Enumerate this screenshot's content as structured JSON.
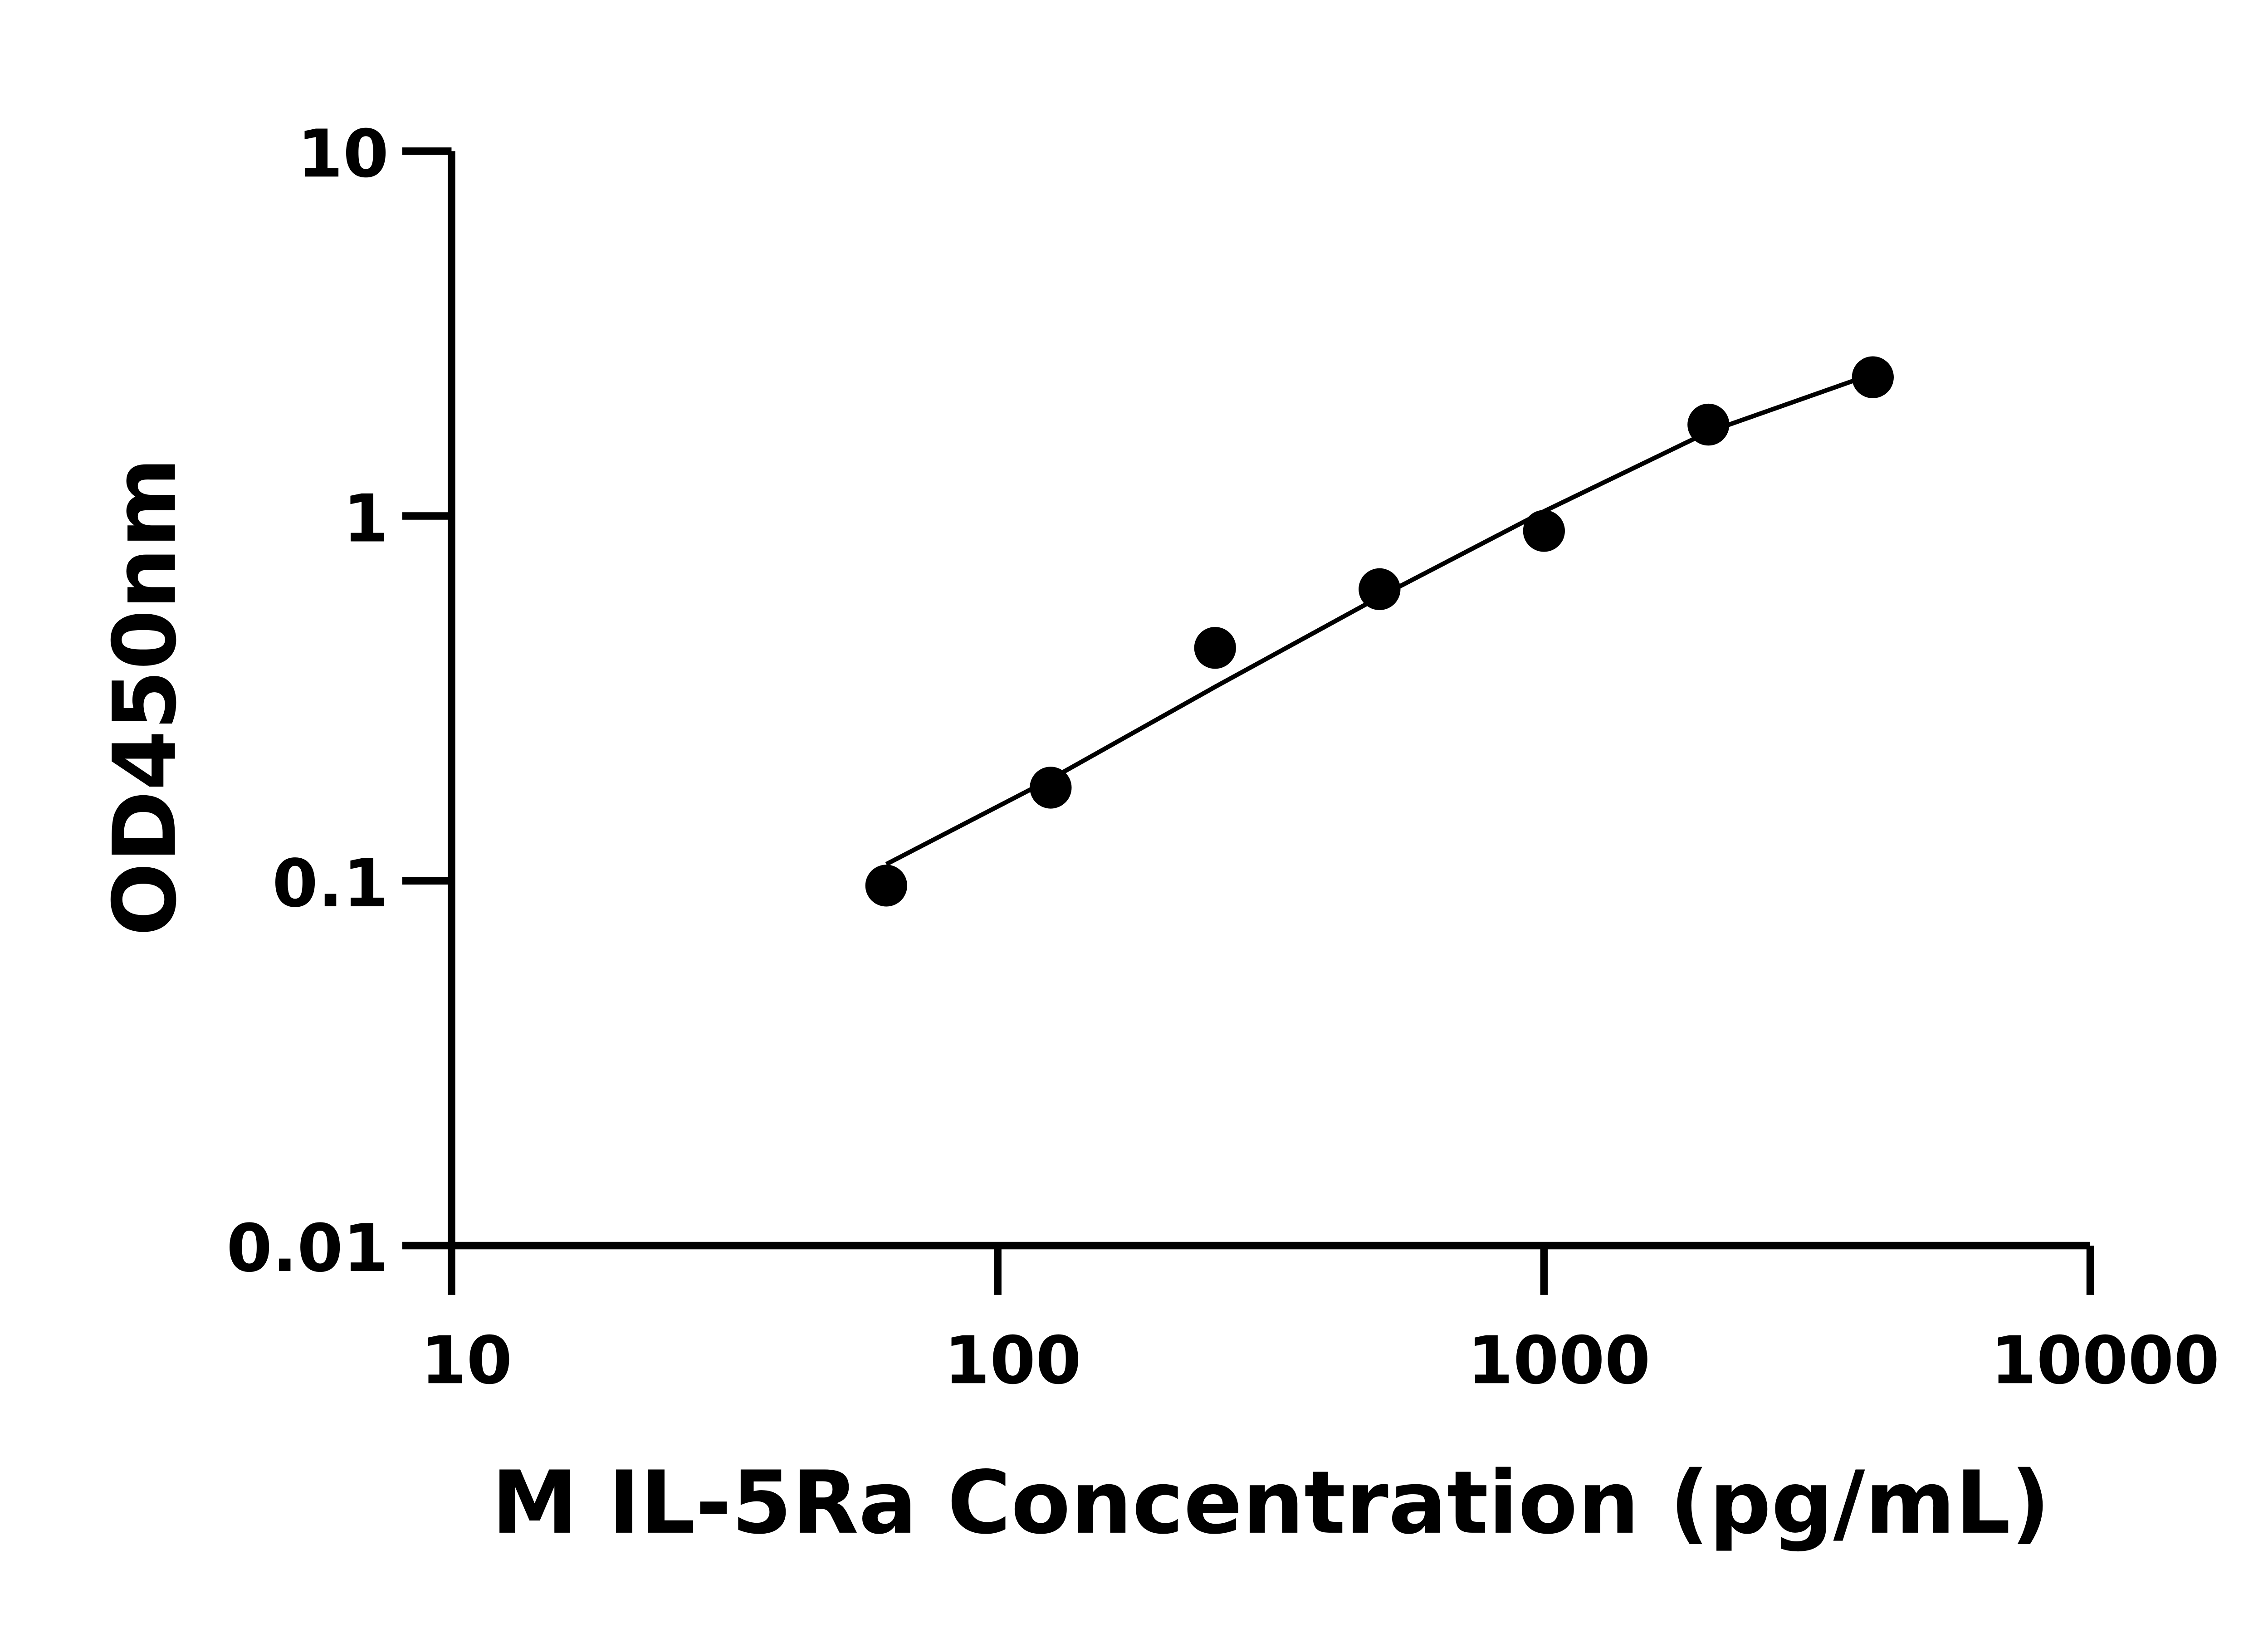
{
  "chart_data": {
    "type": "scatter",
    "title": "",
    "xlabel": "M IL-5Ra Concentration (pg/mL)",
    "ylabel": "OD450nm",
    "x_scale": "log",
    "y_scale": "log",
    "xlim": [
      10,
      10000
    ],
    "ylim": [
      0.01,
      10
    ],
    "x_ticks": [
      "10",
      "100",
      "1000",
      "10000"
    ],
    "y_ticks": [
      "0.01",
      "0.1",
      "1",
      "10"
    ],
    "grid": false,
    "color": "#000000",
    "points": [
      {
        "x": 62.5,
        "y": 0.097
      },
      {
        "x": 125,
        "y": 0.18
      },
      {
        "x": 250,
        "y": 0.435
      },
      {
        "x": 500,
        "y": 0.63
      },
      {
        "x": 1000,
        "y": 0.91
      },
      {
        "x": 2000,
        "y": 1.78
      },
      {
        "x": 4000,
        "y": 2.4
      }
    ],
    "fit_curve": [
      {
        "x": 62.5,
        "y": 0.111
      },
      {
        "x": 125,
        "y": 0.19
      },
      {
        "x": 250,
        "y": 0.34
      },
      {
        "x": 500,
        "y": 0.6
      },
      {
        "x": 1000,
        "y": 1.03
      },
      {
        "x": 2000,
        "y": 1.7
      },
      {
        "x": 4000,
        "y": 2.45
      }
    ]
  }
}
